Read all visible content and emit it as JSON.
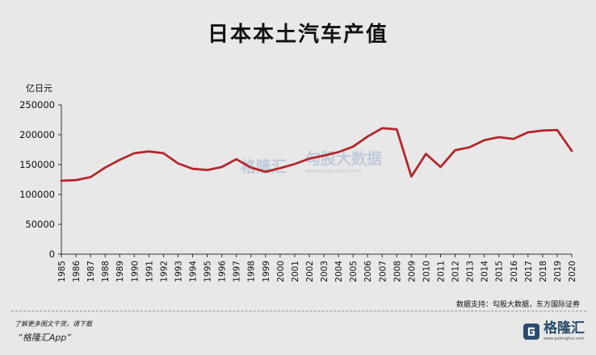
{
  "header": {
    "title": "日本本土汽车产值"
  },
  "footer": {
    "source": "数据支持：勾股大数据，东方国际证券",
    "promo": "了解更多图文干货，请下载",
    "app": "“格隆汇App”",
    "logo": "格隆汇",
    "logo_sub": "www.gelonghui.com"
  },
  "watermark": {
    "left": "格隆汇",
    "right": "勾股大数据",
    "right_sub": "www.gogudata.com"
  },
  "chart_data": {
    "type": "line",
    "title": "日本本土汽车产值",
    "ylabel": "亿日元",
    "xlabel": "",
    "ylim": [
      0,
      250000
    ],
    "yticks": [
      0,
      50000,
      100000,
      150000,
      200000,
      250000
    ],
    "grid": false,
    "line_color": "#b3282d",
    "x": [
      "1985",
      "1986",
      "1987",
      "1988",
      "1989",
      "1990",
      "1991",
      "1992",
      "1993",
      "1994",
      "1995",
      "1996",
      "1997",
      "1998",
      "1999",
      "2000",
      "2001",
      "2002",
      "2003",
      "2004",
      "2005",
      "2006",
      "2007",
      "2008",
      "2009",
      "2010",
      "2011",
      "2012",
      "2013",
      "2014",
      "2015",
      "2016",
      "2017",
      "2018",
      "2019",
      "2020"
    ],
    "series": [
      {
        "values": [
          123000,
          124000,
          129000,
          145000,
          158000,
          169000,
          172000,
          169000,
          152000,
          143000,
          141000,
          146000,
          159000,
          145000,
          138000,
          144000,
          151000,
          160000,
          165000,
          171000,
          180000,
          197000,
          211000,
          209000,
          130000,
          168000,
          146000,
          174000,
          179000,
          191000,
          196000,
          193000,
          204000,
          207000,
          208000,
          173000
        ]
      }
    ]
  }
}
